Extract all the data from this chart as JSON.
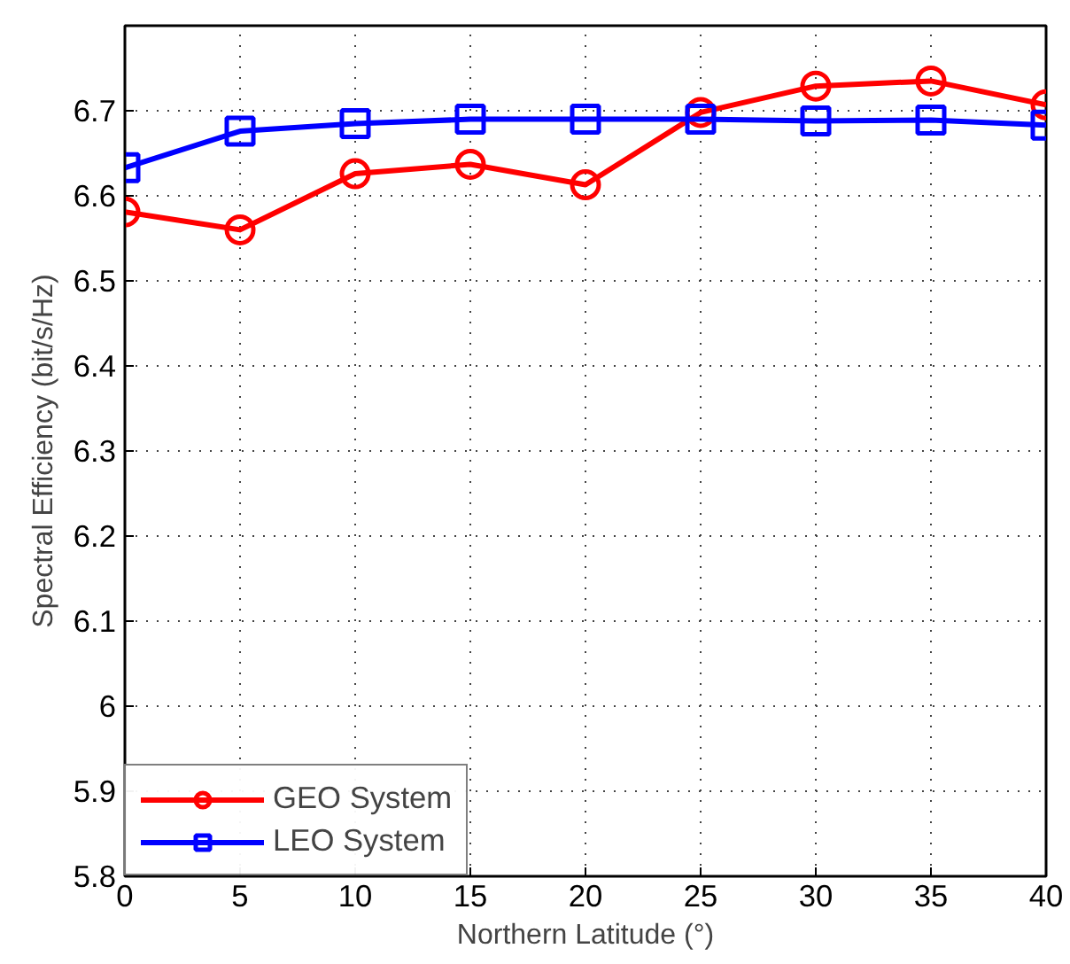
{
  "chart_data": {
    "type": "line",
    "xlabel": "Northern Latitude (°)",
    "ylabel": "Spectral Efficiency (bit/s/Hz)",
    "x": [
      0,
      5,
      10,
      15,
      20,
      25,
      30,
      35,
      40
    ],
    "series": [
      {
        "name": "GEO System",
        "color": "#ff0000",
        "marker": "circle",
        "values": [
          6.581,
          6.56,
          6.626,
          6.637,
          6.613,
          6.698,
          6.729,
          6.735,
          6.707
        ]
      },
      {
        "name": "LEO System",
        "color": "#0000ff",
        "marker": "square",
        "values": [
          6.633,
          6.676,
          6.685,
          6.69,
          6.69,
          6.69,
          6.688,
          6.689,
          6.683
        ]
      }
    ],
    "xlim": [
      0,
      40
    ],
    "ylim": [
      5.8,
      6.8
    ],
    "xticks": [
      0,
      5,
      10,
      15,
      20,
      25,
      30,
      35,
      40
    ],
    "yticks": [
      5.8,
      5.9,
      {
        "value": 6.0,
        "label": "6"
      },
      6.1,
      6.2,
      6.3,
      6.4,
      6.5,
      6.6,
      6.7
    ],
    "grid": true,
    "legend": "bottom left",
    "line_style": "solid"
  }
}
